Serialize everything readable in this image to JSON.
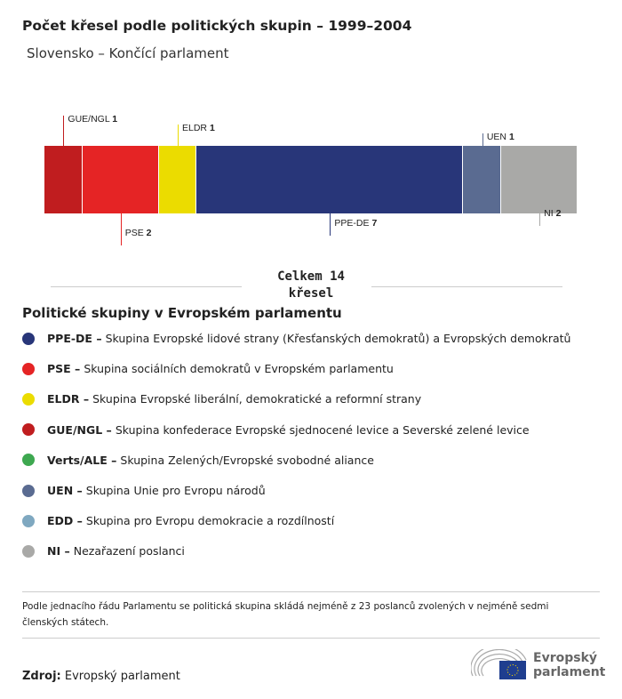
{
  "title": "Počet křesel podle politických skupin – 1999–2004",
  "subtitle": "Slovensko – Končící parlament",
  "chart_data": {
    "type": "bar",
    "orientation": "stacked-horizontal",
    "categories": [
      "GUE/NGL",
      "PSE",
      "ELDR",
      "PPE-DE",
      "UEN",
      "NI"
    ],
    "values": [
      1,
      2,
      1,
      7,
      1,
      2
    ],
    "colors": [
      "#c01d1f",
      "#e52425",
      "#ebdc00",
      "#283679",
      "#5a6b91",
      "#a9a9a7"
    ],
    "label_side": [
      "top",
      "bottom",
      "top",
      "bottom",
      "top",
      "bottom"
    ],
    "total_label": "Celkem 14",
    "total_label2": "křesel"
  },
  "legend": {
    "title": "Politické skupiny v Evropském parlamentu",
    "items": [
      {
        "abbr": "PPE-DE –",
        "desc": "Skupina Evropské lidové strany (Křesťanských demokratů) a Evropských demokratů",
        "color": "#283679"
      },
      {
        "abbr": "PSE –",
        "desc": "Skupina sociálních demokratů v Evropském parlamentu",
        "color": "#e52425"
      },
      {
        "abbr": "ELDR –",
        "desc": "Skupina Evropské liberální, demokratické a reformní strany",
        "color": "#ebdc00"
      },
      {
        "abbr": "GUE/NGL –",
        "desc": "Skupina konfederace Evropské sjednocené levice a Severské zelené levice",
        "color": "#c01d1f"
      },
      {
        "abbr": "Verts/ALE –",
        "desc": "Skupina Zelených/Evropské svobodné aliance",
        "color": "#3ea850"
      },
      {
        "abbr": "UEN –",
        "desc": "Skupina Unie pro Evropu národů",
        "color": "#5a6b91"
      },
      {
        "abbr": "EDD –",
        "desc": "Skupina pro Evropu demokracie a rozdílností",
        "color": "#7fa8c0"
      },
      {
        "abbr": "NI –",
        "desc": "Nezařazení poslanci",
        "color": "#a9a9a7"
      }
    ]
  },
  "note": "Podle jednacího řádu Parlamentu se politická skupina skládá nejméně z 23 poslanců zvolených v nejméně sedmi členských státech.",
  "source_label": "Zdroj:",
  "source": "Evropský parlament",
  "logo": {
    "line1": "Evropský",
    "line2": "parlament"
  }
}
